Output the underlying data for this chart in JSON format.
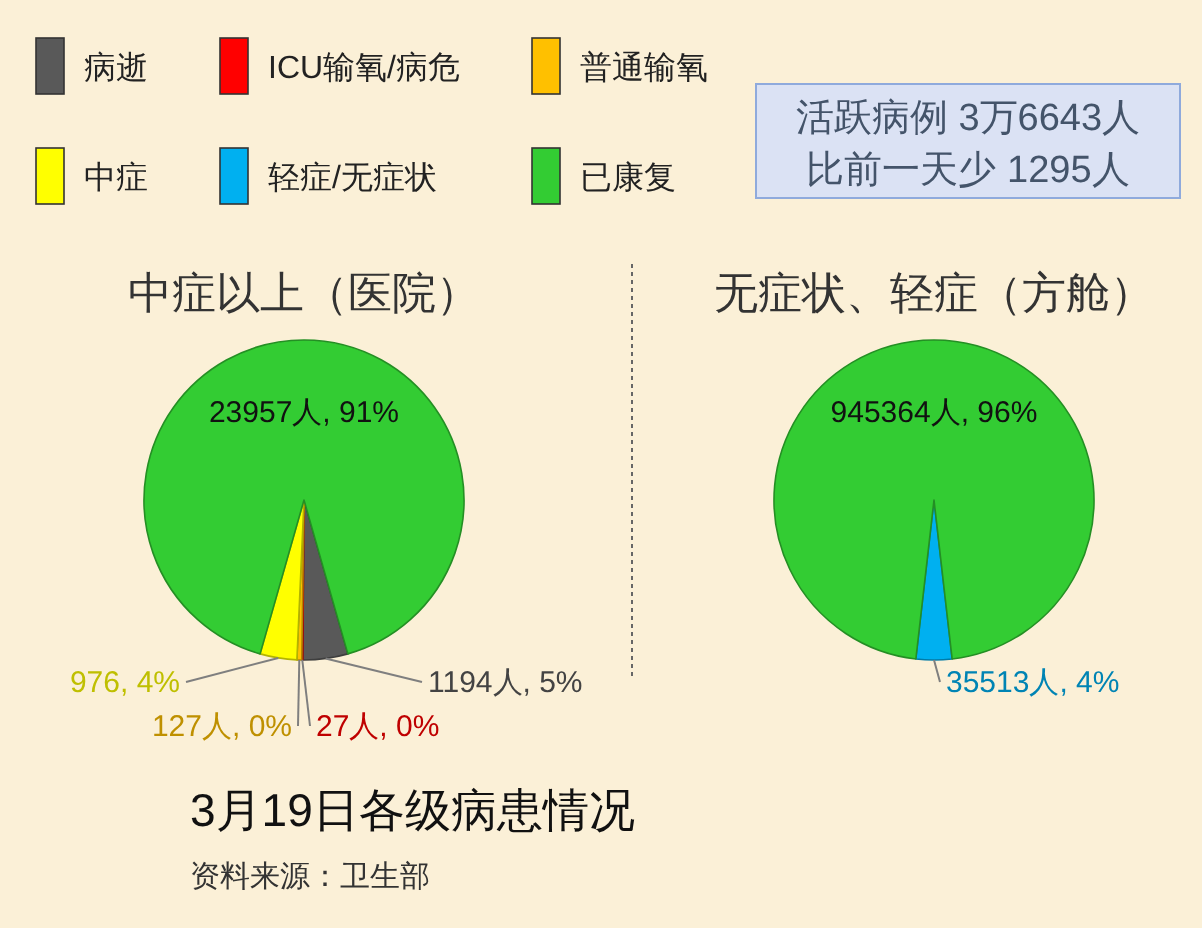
{
  "chart_data": [
    {
      "type": "other",
      "annotations": [
        "活跃病例 3万6643人",
        "比前一天少 1295人"
      ]
    },
    {
      "type": "pie",
      "title": "中症以上（医院）",
      "categories": [
        "病逝",
        "ICU输氧/病危",
        "普通输氧",
        "中症",
        "已康复"
      ],
      "values": [
        1194,
        27,
        127,
        976,
        23957
      ],
      "colors": [
        "#595959",
        "#ff0000",
        "#ffc000",
        "#ffff00",
        "#33cc33"
      ],
      "value_labels": [
        "1194人, 5%",
        "27人, 0%",
        "127人, 0%",
        "976, 4%",
        "23957人, 91%"
      ],
      "legend": "top"
    },
    {
      "type": "pie",
      "title": "无症状、轻症（方舱）",
      "categories": [
        "轻症/无症状",
        null
      ],
      "values": [
        35513,
        945364
      ],
      "colors": [
        "#00b0f0",
        "#33cc33"
      ],
      "value_labels": [
        "35513人, 4%",
        "945364人, 96%"
      ],
      "legend": "top"
    },
    {
      "type": "other",
      "title": "3月19日各级病患情况",
      "annotations": [
        "资料来源：卫生部"
      ]
    }
  ]
}
